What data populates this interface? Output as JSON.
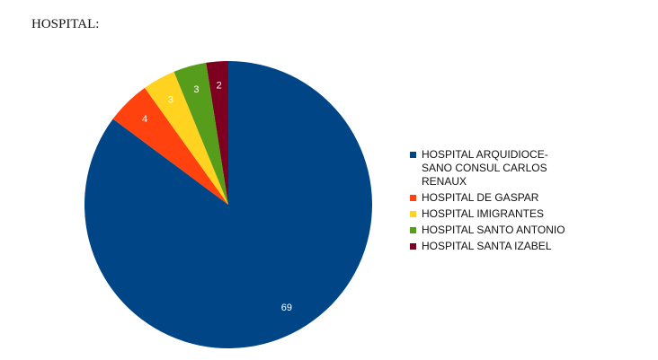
{
  "chart_title": "HOSPITAL:",
  "chart_data": {
    "type": "pie",
    "title": "HOSPITAL:",
    "legend_position": "right",
    "slices": [
      {
        "label": "HOSPITAL ARQUIDIOCE-\nSANO CONSUL CARLOS\nRENAUX",
        "value": 69,
        "color": "#004586"
      },
      {
        "label": "HOSPITAL DE GASPAR",
        "value": 4,
        "color": "#ff420e"
      },
      {
        "label": "HOSPITAL IMIGRANTES",
        "value": 3,
        "color": "#ffd320"
      },
      {
        "label": "HOSPITAL SANTO ANTONIO",
        "value": 3,
        "color": "#579d1c"
      },
      {
        "label": "HOSPITAL SANTA IZABEL",
        "value": 2,
        "color": "#7e0021"
      }
    ]
  }
}
